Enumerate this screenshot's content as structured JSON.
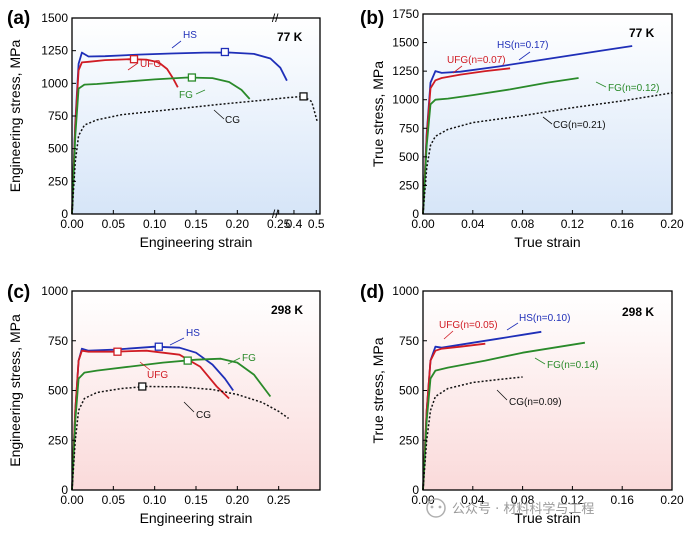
{
  "colors": {
    "HS": "#1f2fb8",
    "UFG": "#d01c24",
    "FG": "#2a8a2a",
    "CG": "#111111",
    "cold": "#dce8f8",
    "warm": "#fbe3e3"
  },
  "watermark": "公众号 · 材料科学与工程",
  "chart_data": [
    {
      "id": "a",
      "type": "line",
      "panel_label": "(a)",
      "temperature": "77 K",
      "xlabel": "Engineering strain",
      "ylabel": "Engineering stress, MPa",
      "xlim": [
        0,
        0.3
      ],
      "ylim": [
        0,
        1500
      ],
      "xticks": [
        0.0,
        0.05,
        0.1,
        0.15,
        0.2,
        0.25
      ],
      "xtick_labels": [
        "0.00",
        "0.05",
        "0.10",
        "0.15",
        "0.20",
        "0.25"
      ],
      "extra_xtick_labels": [
        "0.4",
        "0.5"
      ],
      "axis_break": "//",
      "yticks": [
        0,
        250,
        500,
        750,
        1000,
        1250,
        1500
      ],
      "ytick_labels": [
        "0",
        "250",
        "500",
        "750",
        "1000",
        "1250",
        "1500"
      ],
      "series": [
        {
          "name": "HS",
          "label": "HS",
          "color": "#1f2fb8",
          "dashed": false,
          "x": [
            0,
            0.004,
            0.008,
            0.012,
            0.02,
            0.04,
            0.08,
            0.12,
            0.16,
            0.19,
            0.22,
            0.24,
            0.252,
            0.26
          ],
          "y": [
            0,
            700,
            1150,
            1235,
            1205,
            1208,
            1220,
            1228,
            1235,
            1236,
            1225,
            1190,
            1120,
            1020
          ],
          "marker_x": 0.185,
          "marker_y": 1240
        },
        {
          "name": "UFG",
          "label": "UFG",
          "color": "#d01c24",
          "dashed": false,
          "x": [
            0,
            0.004,
            0.008,
            0.012,
            0.02,
            0.04,
            0.07,
            0.09,
            0.105,
            0.115,
            0.122,
            0.128
          ],
          "y": [
            0,
            680,
            1100,
            1160,
            1165,
            1178,
            1185,
            1182,
            1160,
            1110,
            1040,
            970
          ],
          "marker_x": 0.075,
          "marker_y": 1185
        },
        {
          "name": "FG",
          "label": "FG",
          "color": "#2a8a2a",
          "dashed": false,
          "x": [
            0,
            0.004,
            0.008,
            0.015,
            0.03,
            0.06,
            0.1,
            0.14,
            0.17,
            0.19,
            0.205,
            0.215
          ],
          "y": [
            0,
            600,
            960,
            990,
            995,
            1010,
            1030,
            1045,
            1040,
            1010,
            950,
            880
          ],
          "marker_x": 0.145,
          "marker_y": 1045
        },
        {
          "name": "CG",
          "label": "CG",
          "color": "#111111",
          "dashed": true,
          "x": [
            0,
            0.004,
            0.008,
            0.015,
            0.03,
            0.06,
            0.12,
            0.18,
            0.23,
            0.26,
            0.28,
            0.29,
            0.297
          ],
          "y": [
            0,
            400,
            600,
            680,
            720,
            760,
            800,
            840,
            870,
            890,
            900,
            860,
            700
          ],
          "marker_x": 0.28,
          "marker_y": 900
        }
      ]
    },
    {
      "id": "b",
      "type": "line",
      "panel_label": "(b)",
      "temperature": "77 K",
      "xlabel": "True strain",
      "ylabel": "True stress, MPa",
      "xlim": [
        0,
        0.2
      ],
      "ylim": [
        0,
        1750
      ],
      "xticks": [
        0,
        0.04,
        0.08,
        0.12,
        0.16,
        0.2
      ],
      "xtick_labels": [
        "0.00",
        "0.04",
        "0.08",
        "0.12",
        "0.16",
        "0.20"
      ],
      "yticks": [
        0,
        250,
        500,
        750,
        1000,
        1250,
        1500,
        1750
      ],
      "ytick_labels": [
        "0",
        "250",
        "500",
        "750",
        "1000",
        "1250",
        "1500",
        "1750"
      ],
      "series": [
        {
          "name": "HS",
          "label": "HS(n=0.17)",
          "color": "#1f2fb8",
          "dashed": false,
          "x": [
            0,
            0.003,
            0.006,
            0.01,
            0.015,
            0.03,
            0.06,
            0.09,
            0.12,
            0.15,
            0.168
          ],
          "y": [
            0,
            700,
            1150,
            1250,
            1235,
            1245,
            1290,
            1340,
            1390,
            1440,
            1470
          ]
        },
        {
          "name": "UFG",
          "label": "UFG(n=0.07)",
          "color": "#d01c24",
          "dashed": false,
          "x": [
            0,
            0.003,
            0.006,
            0.01,
            0.015,
            0.03,
            0.05,
            0.07
          ],
          "y": [
            0,
            680,
            1100,
            1170,
            1190,
            1220,
            1250,
            1275
          ]
        },
        {
          "name": "FG",
          "label": "FG(n=0.12)",
          "color": "#2a8a2a",
          "dashed": false,
          "x": [
            0,
            0.003,
            0.006,
            0.01,
            0.02,
            0.04,
            0.07,
            0.1,
            0.125
          ],
          "y": [
            0,
            600,
            960,
            1000,
            1010,
            1040,
            1090,
            1150,
            1190
          ]
        },
        {
          "name": "CG",
          "label": "CG(n=0.21)",
          "color": "#111111",
          "dashed": true,
          "x": [
            0,
            0.003,
            0.006,
            0.01,
            0.02,
            0.04,
            0.08,
            0.12,
            0.16,
            0.2
          ],
          "y": [
            0,
            400,
            600,
            680,
            740,
            800,
            860,
            930,
            990,
            1060
          ]
        }
      ]
    },
    {
      "id": "c",
      "type": "line",
      "panel_label": "(c)",
      "temperature": "298 K",
      "xlabel": "Engineering strain",
      "ylabel": "Engineering stress, MPa",
      "xlim": [
        0,
        0.3
      ],
      "ylim": [
        0,
        1000
      ],
      "xticks": [
        0,
        0.05,
        0.1,
        0.15,
        0.2,
        0.25
      ],
      "xtick_labels": [
        "0.00",
        "0.05",
        "0.10",
        "0.15",
        "0.20",
        "0.25"
      ],
      "yticks": [
        0,
        250,
        500,
        750,
        1000
      ],
      "ytick_labels": [
        "0",
        "250",
        "500",
        "750",
        "1000"
      ],
      "series": [
        {
          "name": "HS",
          "label": "HS",
          "color": "#1f2fb8",
          "dashed": false,
          "x": [
            0,
            0.004,
            0.008,
            0.012,
            0.02,
            0.05,
            0.1,
            0.13,
            0.15,
            0.17,
            0.185,
            0.195
          ],
          "y": [
            0,
            400,
            650,
            710,
            700,
            705,
            720,
            715,
            690,
            630,
            560,
            500
          ],
          "marker_x": 0.105,
          "marker_y": 720
        },
        {
          "name": "UFG",
          "label": "UFG",
          "color": "#d01c24",
          "dashed": false,
          "x": [
            0,
            0.004,
            0.008,
            0.012,
            0.02,
            0.05,
            0.09,
            0.13,
            0.155,
            0.175,
            0.19
          ],
          "y": [
            0,
            400,
            650,
            700,
            695,
            695,
            700,
            680,
            620,
            520,
            460
          ],
          "marker_x": 0.055,
          "marker_y": 695
        },
        {
          "name": "FG",
          "label": "FG",
          "color": "#2a8a2a",
          "dashed": false,
          "x": [
            0,
            0.004,
            0.008,
            0.015,
            0.03,
            0.07,
            0.11,
            0.15,
            0.18,
            0.2,
            0.22,
            0.24
          ],
          "y": [
            0,
            350,
            560,
            590,
            600,
            620,
            640,
            655,
            660,
            640,
            580,
            470
          ],
          "marker_x": 0.14,
          "marker_y": 650
        },
        {
          "name": "CG",
          "label": "CG",
          "color": "#111111",
          "dashed": true,
          "x": [
            0,
            0.004,
            0.008,
            0.015,
            0.03,
            0.06,
            0.09,
            0.13,
            0.17,
            0.2,
            0.23,
            0.25,
            0.262
          ],
          "y": [
            0,
            250,
            400,
            460,
            490,
            510,
            520,
            518,
            505,
            480,
            440,
            395,
            360
          ],
          "marker_x": 0.085,
          "marker_y": 520
        }
      ]
    },
    {
      "id": "d",
      "type": "line",
      "panel_label": "(d)",
      "temperature": "298 K",
      "xlabel": "True strain",
      "ylabel": "True stress, MPa",
      "xlim": [
        0,
        0.2
      ],
      "ylim": [
        0,
        1000
      ],
      "xticks": [
        0,
        0.04,
        0.08,
        0.12,
        0.16,
        0.2
      ],
      "xtick_labels": [
        "0.00",
        "0.04",
        "0.08",
        "0.12",
        "0.16",
        "0.20"
      ],
      "yticks": [
        0,
        250,
        500,
        750,
        1000
      ],
      "ytick_labels": [
        "0",
        "250",
        "500",
        "750",
        "1000"
      ],
      "series": [
        {
          "name": "HS",
          "label": "HS(n=0.10)",
          "color": "#1f2fb8",
          "dashed": false,
          "x": [
            0,
            0.003,
            0.006,
            0.01,
            0.015,
            0.03,
            0.06,
            0.08,
            0.095
          ],
          "y": [
            0,
            400,
            650,
            720,
            715,
            730,
            760,
            780,
            795
          ]
        },
        {
          "name": "UFG",
          "label": "UFG(n=0.05)",
          "color": "#d01c24",
          "dashed": false,
          "x": [
            0,
            0.003,
            0.006,
            0.01,
            0.015,
            0.03,
            0.05
          ],
          "y": [
            0,
            400,
            650,
            700,
            710,
            720,
            735
          ]
        },
        {
          "name": "FG",
          "label": "FG(n=0.14)",
          "color": "#2a8a2a",
          "dashed": false,
          "x": [
            0,
            0.003,
            0.006,
            0.01,
            0.02,
            0.05,
            0.08,
            0.11,
            0.13
          ],
          "y": [
            0,
            350,
            560,
            600,
            615,
            650,
            690,
            720,
            740
          ]
        },
        {
          "name": "CG",
          "label": "CG(n=0.09)",
          "color": "#111111",
          "dashed": true,
          "x": [
            0,
            0.003,
            0.006,
            0.01,
            0.02,
            0.04,
            0.06,
            0.08
          ],
          "y": [
            0,
            250,
            400,
            470,
            510,
            540,
            555,
            568
          ]
        }
      ]
    }
  ]
}
